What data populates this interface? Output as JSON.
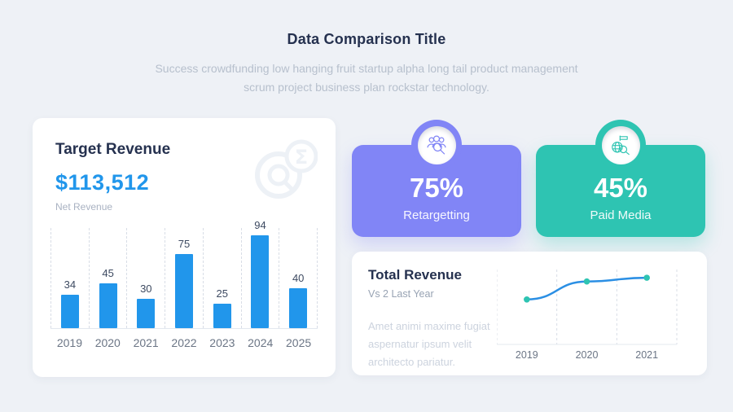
{
  "page": {
    "title": "Data Comparison Title",
    "subtitle": "Success crowdfunding low hanging fruit startup alpha long tail product management scrum project business plan rockstar technology."
  },
  "colors": {
    "background": "#EEF1F6",
    "card_white": "#FFFFFF",
    "navy_text": "#25314F",
    "muted_text": "#B7C0CD",
    "accent_blue": "#2196EB",
    "line_blue": "#2B8FE4",
    "purple": "#8185F6",
    "teal": "#2EC4B2",
    "grid_dash": "#D8DDE6"
  },
  "target_revenue_card": {
    "title": "Target Revenue",
    "amount": "$113,512",
    "amount_label": "Net Revenue",
    "watermark_icon": "sigma-analytics-icon"
  },
  "stat_cards": [
    {
      "value": "75%",
      "label": "Retargetting",
      "icon": "audience-search-icon",
      "color": "#8185F6"
    },
    {
      "value": "45%",
      "label": "Paid Media",
      "icon": "globe-search-icon",
      "color": "#2EC4B2"
    }
  ],
  "total_revenue_card": {
    "title": "Total Revenue",
    "subtitle": "Vs 2 Last Year",
    "description": "Amet animi maxime fugiat aspernatur ipsum velit architecto pariatur."
  },
  "chart_data": [
    {
      "type": "bar",
      "title": "Target Revenue",
      "categories": [
        "2019",
        "2020",
        "2021",
        "2022",
        "2023",
        "2024",
        "2025"
      ],
      "values": [
        34,
        45,
        30,
        75,
        25,
        94,
        40
      ],
      "bar_color": "#2196EB",
      "ylim": [
        0,
        100
      ],
      "grid": "vertical-dashed",
      "data_labels": true,
      "legend": "none"
    },
    {
      "type": "line",
      "title": "Total Revenue",
      "x": [
        "2019",
        "2020",
        "2021"
      ],
      "values": [
        60,
        84,
        89
      ],
      "ylim": [
        0,
        100
      ],
      "line_color": "#2B8FE4",
      "marker_color": "#2EC4B2",
      "grid": "vertical-dashed",
      "legend": "none"
    }
  ]
}
